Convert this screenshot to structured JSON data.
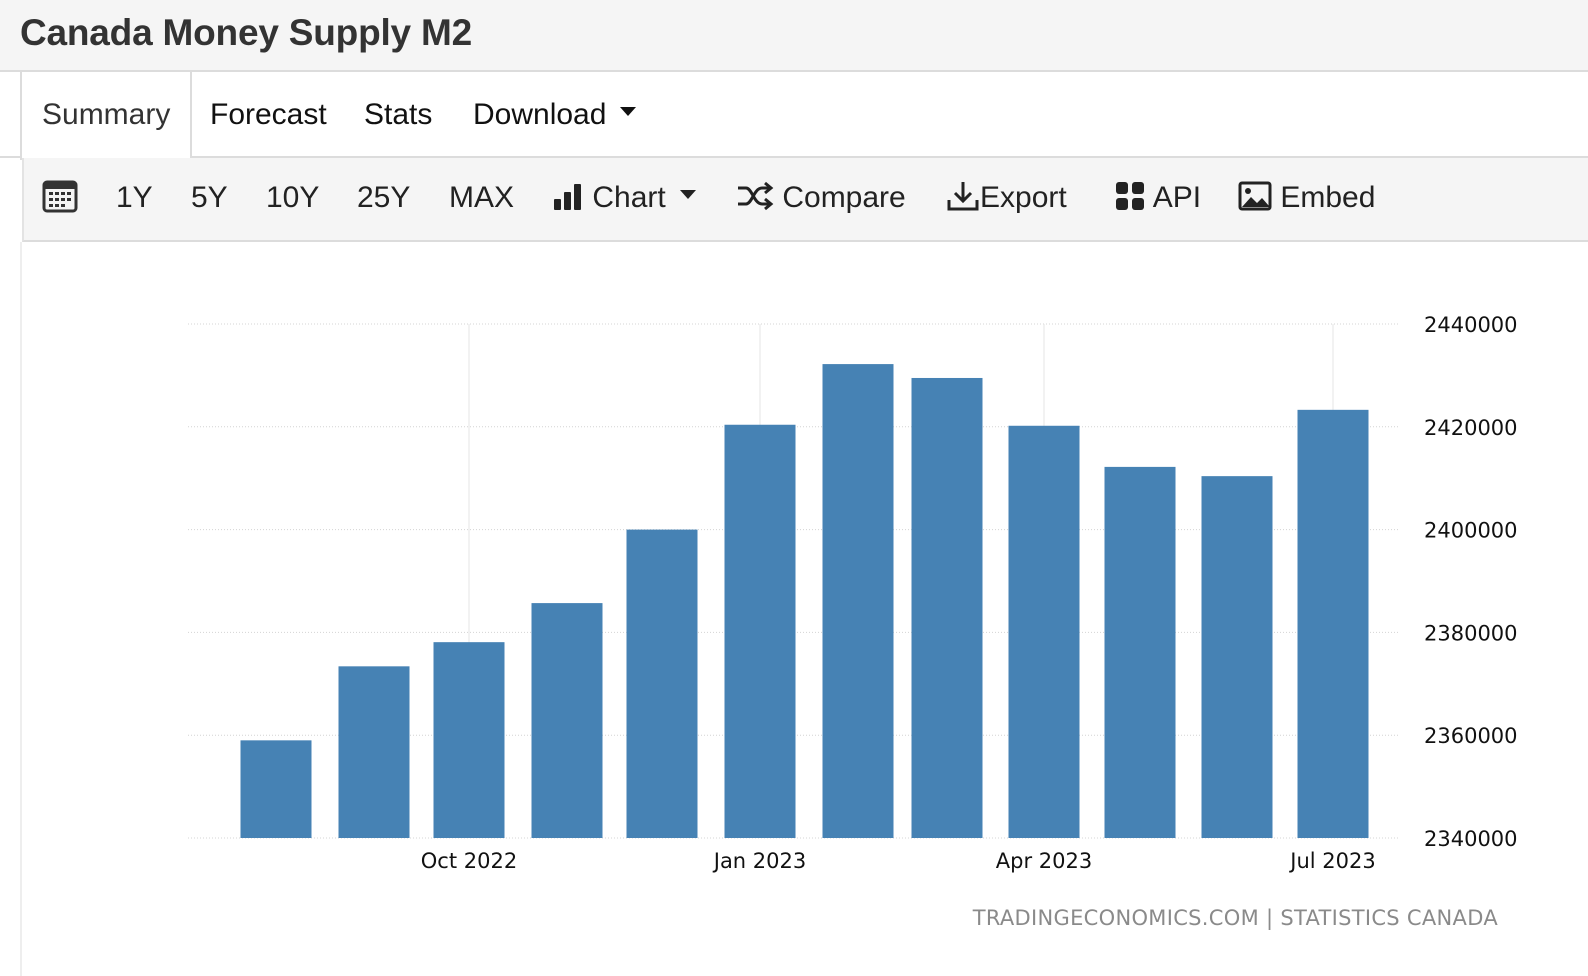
{
  "title": "Canada Money Supply M2",
  "tabs": [
    {
      "label": "Summary",
      "active": true
    },
    {
      "label": "Forecast"
    },
    {
      "label": "Stats"
    },
    {
      "label": "Download"
    }
  ],
  "toolbar": {
    "ranges": [
      "1Y",
      "5Y",
      "10Y",
      "25Y",
      "MAX"
    ],
    "chart_label": "Chart",
    "compare_label": "Compare",
    "export_label": "Export",
    "api_label": "API",
    "embed_label": "Embed"
  },
  "icons": {
    "calendar": "calendar-icon",
    "chart": "bar-chart-icon",
    "compare": "shuffle-icon",
    "export": "download-icon",
    "api": "grid-icon",
    "embed": "image-icon"
  },
  "colors": {
    "bar": "#4682b4"
  },
  "credit": "TRADINGECONOMICS.COM | STATISTICS CANADA",
  "chart_data": {
    "type": "bar",
    "categories": [
      "Aug 2022",
      "Sep 2022",
      "Oct 2022",
      "Nov 2022",
      "Dec 2022",
      "Jan 2023",
      "Feb 2023",
      "Mar 2023",
      "Apr 2023",
      "May 2023",
      "Jun 2023",
      "Jul 2023"
    ],
    "values": [
      2359000,
      2373400,
      2378100,
      2385700,
      2400000,
      2420400,
      2432200,
      2429500,
      2420200,
      2412200,
      2410400,
      2423300
    ],
    "x_tick_labels": [
      {
        "category": "Oct 2022",
        "label": "Oct 2022"
      },
      {
        "category": "Jan 2023",
        "label": "Jan 2023"
      },
      {
        "category": "Apr 2023",
        "label": "Apr 2023"
      },
      {
        "category": "Jul 2023",
        "label": "Jul 2023"
      }
    ],
    "y_ticks": [
      "2340000",
      "2360000",
      "2380000",
      "2400000",
      "2420000",
      "2440000"
    ],
    "ylim": [
      2340000,
      2440000
    ],
    "grid": true,
    "y_axis_side": "right"
  }
}
